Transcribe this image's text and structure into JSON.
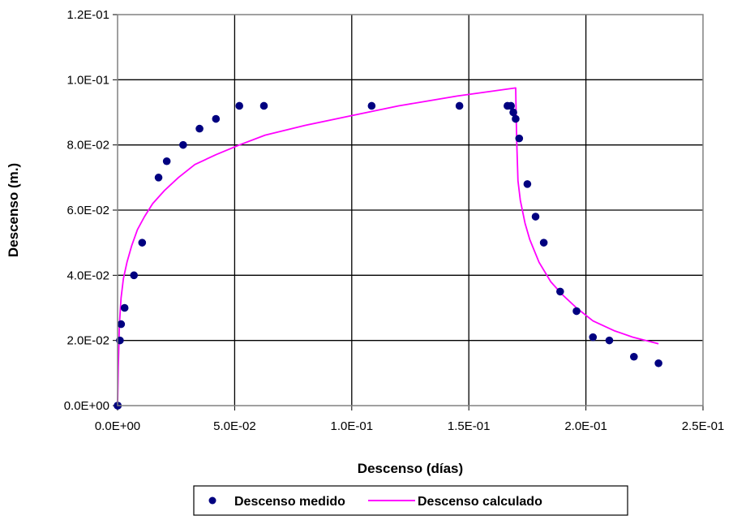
{
  "chart_data": {
    "type": "scatter",
    "title": "",
    "xlabel": "Descenso (días)",
    "ylabel": "Descenso (m.)",
    "xlim": [
      0,
      0.25
    ],
    "ylim": [
      0,
      0.12
    ],
    "x_ticks": [
      "0.0E+00",
      "5.0E-02",
      "1.0E-01",
      "1.5E-01",
      "2.0E-01",
      "2.5E-01"
    ],
    "x_tick_values": [
      0,
      0.05,
      0.1,
      0.15,
      0.2,
      0.25
    ],
    "y_ticks": [
      "0.0E+00",
      "2.0E-02",
      "4.0E-02",
      "6.0E-02",
      "8.0E-02",
      "1.0E-01",
      "1.2E-01"
    ],
    "y_tick_values": [
      0,
      0.02,
      0.04,
      0.06,
      0.08,
      0.1,
      0.12
    ],
    "grid": true,
    "legend_position": "bottom",
    "series": [
      {
        "name": "Descenso medido",
        "kind": "scatter",
        "color": "#000080",
        "points": [
          [
            0.0,
            0.0
          ],
          [
            0.0001,
            0.0
          ],
          [
            0.001,
            0.02
          ],
          [
            0.0015,
            0.025
          ],
          [
            0.003,
            0.03
          ],
          [
            0.007,
            0.04
          ],
          [
            0.0105,
            0.05
          ],
          [
            0.0175,
            0.07
          ],
          [
            0.021,
            0.075
          ],
          [
            0.028,
            0.08
          ],
          [
            0.035,
            0.085
          ],
          [
            0.042,
            0.088
          ],
          [
            0.052,
            0.092
          ],
          [
            0.0625,
            0.092
          ],
          [
            0.1085,
            0.092
          ],
          [
            0.146,
            0.092
          ],
          [
            0.1665,
            0.092
          ],
          [
            0.168,
            0.092
          ],
          [
            0.169,
            0.09
          ],
          [
            0.17,
            0.088
          ],
          [
            0.1715,
            0.082
          ],
          [
            0.175,
            0.068
          ],
          [
            0.1785,
            0.058
          ],
          [
            0.182,
            0.05
          ],
          [
            0.189,
            0.035
          ],
          [
            0.196,
            0.029
          ],
          [
            0.203,
            0.021
          ],
          [
            0.21,
            0.02
          ],
          [
            0.2205,
            0.015
          ],
          [
            0.231,
            0.013
          ]
        ]
      },
      {
        "name": "Descenso calculado",
        "kind": "line",
        "color": "#ff00ff",
        "points": [
          [
            0.0,
            0.0
          ],
          [
            0.0003,
            0.012
          ],
          [
            0.0008,
            0.025
          ],
          [
            0.0015,
            0.033
          ],
          [
            0.0025,
            0.039
          ],
          [
            0.004,
            0.044
          ],
          [
            0.006,
            0.049
          ],
          [
            0.0085,
            0.054
          ],
          [
            0.0115,
            0.058
          ],
          [
            0.015,
            0.062
          ],
          [
            0.02,
            0.066
          ],
          [
            0.026,
            0.07
          ],
          [
            0.033,
            0.074
          ],
          [
            0.042,
            0.077
          ],
          [
            0.052,
            0.08
          ],
          [
            0.063,
            0.083
          ],
          [
            0.08,
            0.086
          ],
          [
            0.1,
            0.089
          ],
          [
            0.12,
            0.092
          ],
          [
            0.145,
            0.095
          ],
          [
            0.17,
            0.0975
          ],
          [
            0.1702,
            0.09
          ],
          [
            0.1705,
            0.08
          ],
          [
            0.171,
            0.069
          ],
          [
            0.172,
            0.063
          ],
          [
            0.174,
            0.056
          ],
          [
            0.176,
            0.051
          ],
          [
            0.18,
            0.044
          ],
          [
            0.185,
            0.038
          ],
          [
            0.19,
            0.034
          ],
          [
            0.196,
            0.03
          ],
          [
            0.203,
            0.026
          ],
          [
            0.212,
            0.023
          ],
          [
            0.22,
            0.021
          ],
          [
            0.231,
            0.019
          ]
        ]
      }
    ]
  }
}
